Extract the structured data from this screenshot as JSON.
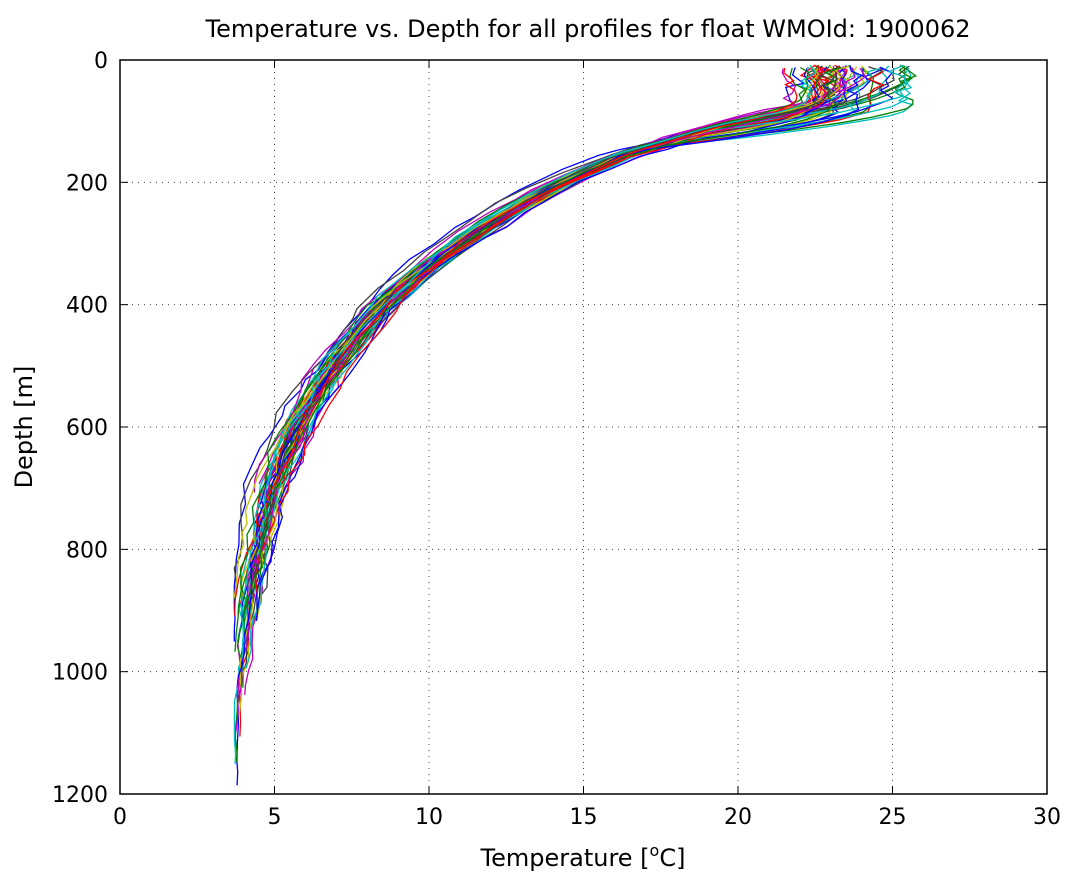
{
  "chart_data": {
    "type": "line",
    "title": "Temperature vs. Depth for all profiles for float WMOId: 1900062",
    "xlabel": "Temperature [",
    "xlabel_super": "o",
    "xlabel_suffix": "C]",
    "ylabel": "Depth [m]",
    "xlim": [
      0,
      30
    ],
    "ylim": [
      0,
      1200
    ],
    "y_inverted": true,
    "xticks": [
      0,
      5,
      10,
      15,
      20,
      25,
      30
    ],
    "yticks": [
      0,
      200,
      400,
      600,
      800,
      1000,
      1200
    ],
    "xtick_labels": [
      "0",
      "5",
      "10",
      "15",
      "20",
      "25",
      "30"
    ],
    "ytick_labels": [
      "0",
      "200",
      "400",
      "600",
      "800",
      "1000",
      "1200"
    ],
    "grid": true,
    "legend": "none",
    "profile_count": 60,
    "series_colors": [
      "#0000ff",
      "#008000",
      "#ff0000",
      "#00bfbf",
      "#bf00bf",
      "#bfbf00",
      "#404040"
    ],
    "mean_profile": {
      "depth": [
        10,
        40,
        70,
        100,
        130,
        160,
        200,
        250,
        300,
        350,
        400,
        450,
        500,
        550,
        600,
        650,
        700,
        800,
        900,
        1000,
        1100
      ],
      "temperature": [
        23.0,
        23.0,
        22.2,
        20.0,
        18.0,
        16.0,
        14.3,
        12.5,
        11.0,
        9.6,
        8.5,
        7.7,
        6.9,
        6.3,
        5.7,
        5.3,
        4.9,
        4.45,
        4.1,
        3.9,
        3.8
      ]
    }
  }
}
